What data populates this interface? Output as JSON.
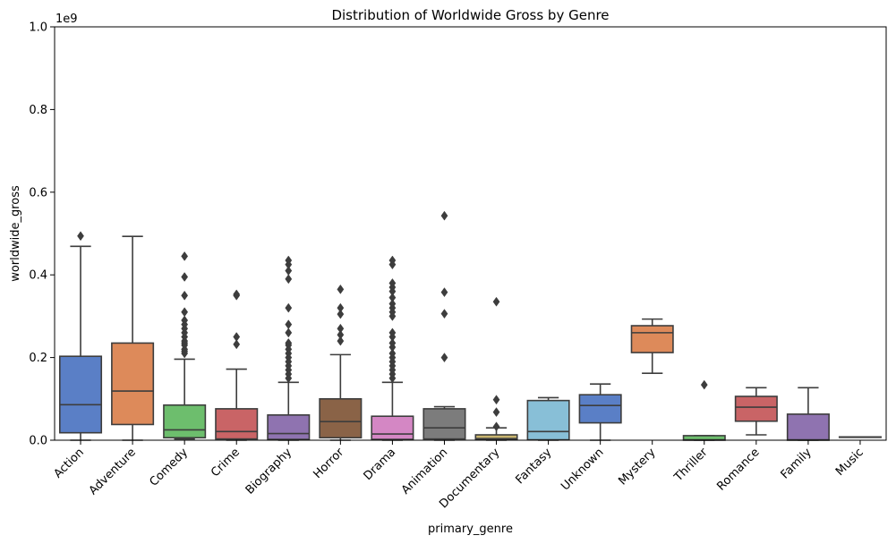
{
  "chart_data": {
    "type": "box",
    "title": "Distribution of Worldwide Gross by Genre",
    "xlabel": "primary_genre",
    "ylabel": "worldwide_gross",
    "y_scale_label": "1e9",
    "ylim": [
      0,
      1.0
    ],
    "y_ticks": [
      0.0,
      0.2,
      0.4,
      0.6,
      0.8,
      1.0
    ],
    "y_tick_labels": [
      "0.0",
      "0.2",
      "0.4",
      "0.6",
      "0.8",
      "1.0"
    ],
    "grid": false,
    "categories": [
      "Action",
      "Adventure",
      "Comedy",
      "Crime",
      "Biography",
      "Horror",
      "Drama",
      "Animation",
      "Documentary",
      "Fantasy",
      "Unknown",
      "Mystery",
      "Thriller",
      "Romance",
      "Family",
      "Music"
    ],
    "boxes": [
      {
        "category": "Action",
        "color": "#5a7fc6",
        "whislo": 0.0,
        "q1": 0.018,
        "median": 0.086,
        "q3": 0.203,
        "whishi": 0.469,
        "fliers": [
          0.494
        ]
      },
      {
        "category": "Adventure",
        "color": "#dd8a5a",
        "whislo": 0.0,
        "q1": 0.038,
        "median": 0.119,
        "q3": 0.235,
        "whishi": 0.493,
        "fliers": []
      },
      {
        "category": "Comedy",
        "color": "#6dbe6d",
        "whislo": 0.003,
        "q1": 0.006,
        "median": 0.025,
        "q3": 0.085,
        "whishi": 0.196,
        "fliers": [
          0.21,
          0.215,
          0.22,
          0.23,
          0.235,
          0.24,
          0.25,
          0.26,
          0.27,
          0.28,
          0.29,
          0.31,
          0.35,
          0.395,
          0.445
        ]
      },
      {
        "category": "Crime",
        "color": "#c96466",
        "whislo": 0.0,
        "q1": 0.003,
        "median": 0.021,
        "q3": 0.076,
        "whishi": 0.172,
        "fliers": [
          0.232,
          0.25,
          0.35,
          0.353
        ]
      },
      {
        "category": "Biography",
        "color": "#8f73b0",
        "whislo": 0.0,
        "q1": 0.002,
        "median": 0.016,
        "q3": 0.061,
        "whishi": 0.14,
        "fliers": [
          0.15,
          0.16,
          0.17,
          0.18,
          0.19,
          0.2,
          0.21,
          0.22,
          0.23,
          0.235,
          0.26,
          0.28,
          0.32,
          0.39,
          0.41,
          0.425,
          0.435
        ]
      },
      {
        "category": "Horror",
        "color": "#8a6347",
        "whislo": 0.0,
        "q1": 0.006,
        "median": 0.045,
        "q3": 0.1,
        "whishi": 0.207,
        "fliers": [
          0.24,
          0.255,
          0.27,
          0.305,
          0.32,
          0.365
        ]
      },
      {
        "category": "Drama",
        "color": "#d487c4",
        "whislo": 0.0,
        "q1": 0.002,
        "median": 0.015,
        "q3": 0.058,
        "whishi": 0.14,
        "fliers": [
          0.15,
          0.16,
          0.17,
          0.18,
          0.19,
          0.2,
          0.21,
          0.225,
          0.235,
          0.25,
          0.26,
          0.3,
          0.31,
          0.32,
          0.33,
          0.345,
          0.36,
          0.37,
          0.38,
          0.425,
          0.435
        ]
      },
      {
        "category": "Animation",
        "color": "#7c7c7c",
        "whislo": 0.0,
        "q1": 0.003,
        "median": 0.03,
        "q3": 0.076,
        "whishi": 0.081,
        "fliers": [
          0.2,
          0.306,
          0.358,
          0.543
        ]
      },
      {
        "category": "Documentary",
        "color": "#c9b56f",
        "whislo": 0.0,
        "q1": 0.001,
        "median": 0.004,
        "q3": 0.013,
        "whishi": 0.03,
        "fliers": [
          0.033,
          0.068,
          0.098,
          0.335
        ]
      },
      {
        "category": "Fantasy",
        "color": "#88bfd7",
        "whislo": 0.0,
        "q1": 0.001,
        "median": 0.021,
        "q3": 0.096,
        "whishi": 0.103,
        "fliers": []
      },
      {
        "category": "Unknown",
        "color": "#5a7fc6",
        "whislo": 0.0,
        "q1": 0.042,
        "median": 0.084,
        "q3": 0.11,
        "whishi": 0.136,
        "fliers": []
      },
      {
        "category": "Mystery",
        "color": "#dd8a5a",
        "whislo": 0.162,
        "q1": 0.212,
        "median": 0.26,
        "q3": 0.277,
        "whishi": 0.293,
        "fliers": []
      },
      {
        "category": "Thriller",
        "color": "#6dbe6d",
        "whislo": 0.0,
        "q1": 0.0,
        "median": 0.001,
        "q3": 0.011,
        "whishi": 0.011,
        "fliers": [
          0.134
        ]
      },
      {
        "category": "Romance",
        "color": "#c96466",
        "whislo": 0.013,
        "q1": 0.046,
        "median": 0.08,
        "q3": 0.106,
        "whishi": 0.127,
        "fliers": []
      },
      {
        "category": "Family",
        "color": "#8f73b0",
        "whislo": 0.0,
        "q1": 0.0,
        "median": 0.001,
        "q3": 0.063,
        "whishi": 0.127,
        "fliers": []
      },
      {
        "category": "Music",
        "color": "#8a6347",
        "whislo": 0.008,
        "q1": 0.008,
        "median": 0.008,
        "q3": 0.008,
        "whishi": 0.008,
        "fliers": []
      }
    ]
  }
}
